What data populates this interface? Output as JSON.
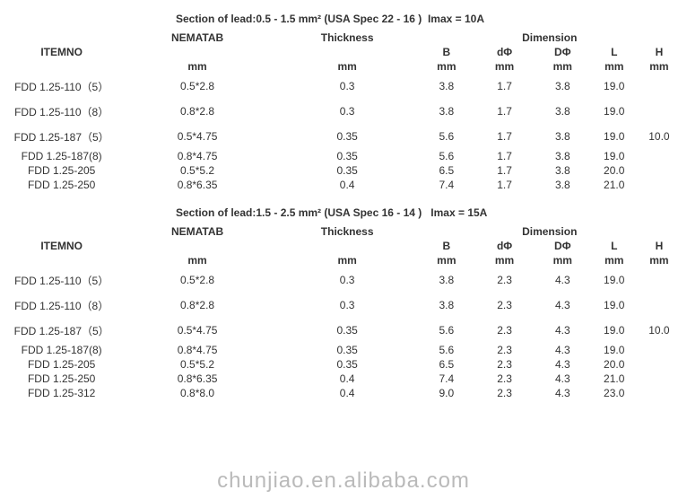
{
  "watermark": "chunjiao.en.alibaba.com",
  "sections": [
    {
      "title": "Section of lead:0.5 - 1.5 mm² (USA Spec 22 - 16 )  Imax = 10A",
      "headers": {
        "itemno": "ITEMNO",
        "nematab": "NEMATAB",
        "thickness": "Thickness",
        "dimension": "Dimension",
        "B": "B",
        "dphi": "dΦ",
        "Dphi": "DΦ",
        "L": "L",
        "H": "H",
        "mm": "mm"
      },
      "rows": [
        {
          "item": "FDD 1.25-110（5）",
          "nematab": "0.5*2.8",
          "thick": "0.3",
          "B": "3.8",
          "d": "1.7",
          "D": "3.8",
          "L": "19.0",
          "H": "",
          "tall": true
        },
        {
          "item": "FDD 1.25-110（8）",
          "nematab": "0.8*2.8",
          "thick": "0.3",
          "B": "3.8",
          "d": "1.7",
          "D": "3.8",
          "L": "19.0",
          "H": "",
          "tall": true
        },
        {
          "item": "FDD 1.25-187（5）",
          "nematab": "0.5*4.75",
          "thick": "0.35",
          "B": "5.6",
          "d": "1.7",
          "D": "3.8",
          "L": "19.0",
          "H": "10.0",
          "tall": true
        },
        {
          "item": "FDD 1.25-187(8)",
          "nematab": "0.8*4.75",
          "thick": "0.35",
          "B": "5.6",
          "d": "1.7",
          "D": "3.8",
          "L": "19.0",
          "H": "",
          "tall": false
        },
        {
          "item": "FDD 1.25-205",
          "nematab": "0.5*5.2",
          "thick": "0.35",
          "B": "6.5",
          "d": "1.7",
          "D": "3.8",
          "L": "20.0",
          "H": "",
          "tall": false
        },
        {
          "item": "FDD 1.25-250",
          "nematab": "0.8*6.35",
          "thick": "0.4",
          "B": "7.4",
          "d": "1.7",
          "D": "3.8",
          "L": "21.0",
          "H": "",
          "tall": false
        }
      ]
    },
    {
      "title": "Section of lead:1.5 - 2.5 mm² (USA Spec 16 - 14 )   Imax = 15A",
      "headers": {
        "itemno": "ITEMNO",
        "nematab": "NEMATAB",
        "thickness": "Thickness",
        "dimension": "Dimension",
        "B": "B",
        "dphi": "dΦ",
        "Dphi": "DΦ",
        "L": "L",
        "H": "H",
        "mm": "mm"
      },
      "rows": [
        {
          "item": "FDD 1.25-110（5）",
          "nematab": "0.5*2.8",
          "thick": "0.3",
          "B": "3.8",
          "d": "2.3",
          "D": "4.3",
          "L": "19.0",
          "H": "",
          "tall": true
        },
        {
          "item": "FDD 1.25-110（8）",
          "nematab": "0.8*2.8",
          "thick": "0.3",
          "B": "3.8",
          "d": "2.3",
          "D": "4.3",
          "L": "19.0",
          "H": "",
          "tall": true
        },
        {
          "item": "FDD 1.25-187（5）",
          "nematab": "0.5*4.75",
          "thick": "0.35",
          "B": "5.6",
          "d": "2.3",
          "D": "4.3",
          "L": "19.0",
          "H": "10.0",
          "tall": true
        },
        {
          "item": "FDD 1.25-187(8)",
          "nematab": "0.8*4.75",
          "thick": "0.35",
          "B": "5.6",
          "d": "2.3",
          "D": "4.3",
          "L": "19.0",
          "H": "",
          "tall": false
        },
        {
          "item": "FDD 1.25-205",
          "nematab": "0.5*5.2",
          "thick": "0.35",
          "B": "6.5",
          "d": "2.3",
          "D": "4.3",
          "L": "20.0",
          "H": "",
          "tall": false
        },
        {
          "item": "FDD 1.25-250",
          "nematab": "0.8*6.35",
          "thick": "0.4",
          "B": "7.4",
          "d": "2.3",
          "D": "4.3",
          "L": "21.0",
          "H": "",
          "tall": false
        },
        {
          "item": "FDD 1.25-312",
          "nematab": "0.8*8.0",
          "thick": "0.4",
          "B": "9.0",
          "d": "2.3",
          "D": "4.3",
          "L": "23.0",
          "H": "",
          "tall": false
        }
      ]
    }
  ]
}
